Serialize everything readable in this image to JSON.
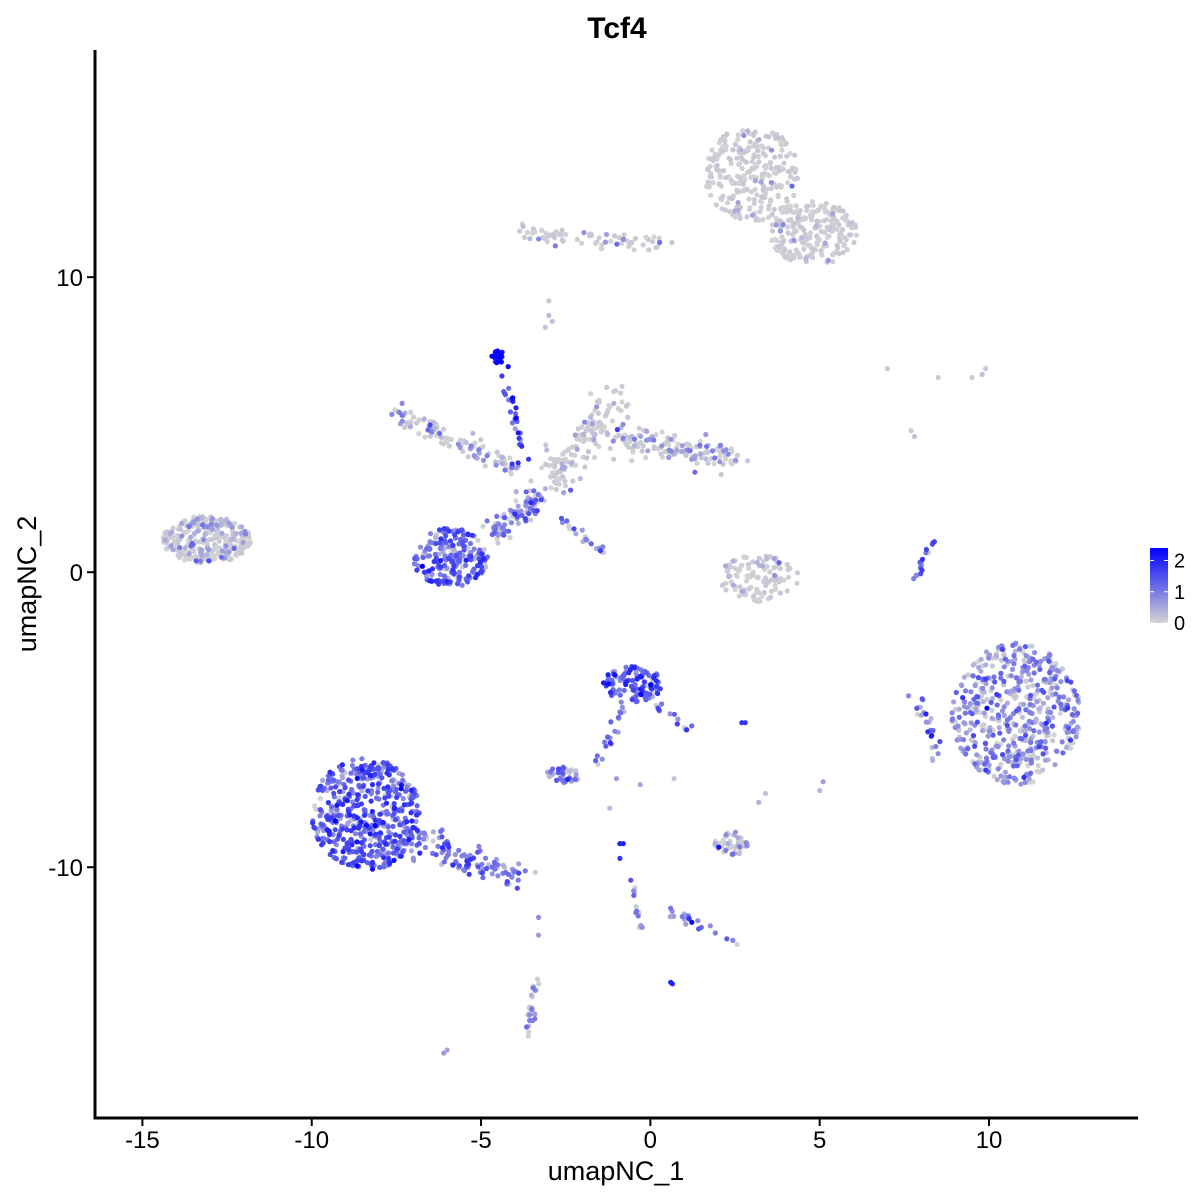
{
  "chart_data": {
    "type": "scatter",
    "title": "Tcf4",
    "xlabel": "umapNC_1",
    "ylabel": "umapNC_2",
    "xlim": [
      -16.4,
      14.4
    ],
    "ylim": [
      -18.5,
      17.7
    ],
    "x_ticks": [
      -15,
      -10,
      -5,
      0,
      5,
      10
    ],
    "x_tick_labels": [
      "-15",
      "-10",
      "-5",
      "0",
      "5",
      "10"
    ],
    "y_ticks": [
      -10,
      0,
      10
    ],
    "y_tick_labels": [
      "-10",
      "0",
      "10"
    ],
    "grid": false,
    "legend": {
      "placement": "right",
      "type": "colorbar",
      "range": [
        0,
        2.4
      ],
      "ticks": [
        0,
        1,
        2
      ],
      "tick_labels": [
        "0",
        "1",
        "2"
      ],
      "low_color": "#d3d3d3",
      "high_color": "#0000ff"
    },
    "points_note": "expression 0..2.4 mapped grey to blue",
    "clusters": [
      {
        "cx": 10.8,
        "cy": -4.8,
        "rx": 1.9,
        "ry": 2.4,
        "n": 520,
        "expr": 0.75,
        "shape": "blob"
      },
      {
        "cx": -8.4,
        "cy": -8.2,
        "rx": 1.6,
        "ry": 1.9,
        "n": 520,
        "expr": 1.25,
        "shape": "blob"
      },
      {
        "cx": 3.0,
        "cy": 13.5,
        "rx": 1.4,
        "ry": 1.6,
        "n": 260,
        "expr": 0.1,
        "shape": "blob"
      },
      {
        "cx": 4.8,
        "cy": 11.5,
        "rx": 1.3,
        "ry": 1.1,
        "n": 230,
        "expr": 0.15,
        "shape": "blob"
      },
      {
        "cx": -13.1,
        "cy": 1.1,
        "rx": 1.3,
        "ry": 0.8,
        "n": 280,
        "expr": 0.4,
        "shape": "blob"
      },
      {
        "cx": -5.9,
        "cy": 0.5,
        "rx": 1.1,
        "ry": 1.0,
        "n": 210,
        "expr": 1.2,
        "shape": "blob"
      },
      {
        "cx": -0.5,
        "cy": -3.8,
        "rx": 0.9,
        "ry": 0.6,
        "n": 110,
        "expr": 1.4,
        "shape": "blob"
      },
      {
        "cx": 3.2,
        "cy": -0.2,
        "rx": 1.2,
        "ry": 0.8,
        "n": 110,
        "expr": 0.25,
        "shape": "blob"
      },
      {
        "cx": 2.4,
        "cy": -9.2,
        "rx": 0.5,
        "ry": 0.4,
        "n": 45,
        "expr": 0.5,
        "shape": "blob"
      },
      {
        "cx": -2.6,
        "cy": -6.9,
        "rx": 0.5,
        "ry": 0.3,
        "n": 40,
        "expr": 1.0,
        "shape": "blob"
      },
      {
        "cx": -4.5,
        "cy": 7.3,
        "rx": 0.2,
        "ry": 0.2,
        "n": 18,
        "expr": 2.3,
        "shape": "blob"
      }
    ],
    "arms": [
      {
        "x0": -4.0,
        "y0": 3.5,
        "x1": -7.5,
        "y1": 5.4,
        "n": 110,
        "w": 0.35,
        "expr": 0.5
      },
      {
        "x0": -3.0,
        "y0": 3.0,
        "x1": -1.0,
        "y1": 5.8,
        "n": 140,
        "expr": 0.3,
        "w": 0.6
      },
      {
        "x0": -1.0,
        "y0": 4.5,
        "x1": 2.5,
        "y1": 3.9,
        "n": 140,
        "expr": 0.5,
        "w": 0.45
      },
      {
        "x0": -3.2,
        "y0": 2.6,
        "x1": -4.7,
        "y1": 1.3,
        "n": 90,
        "expr": 0.8,
        "w": 0.4
      },
      {
        "x0": -4.4,
        "y0": 7.1,
        "x1": -3.6,
        "y1": 3.2,
        "n": 28,
        "expr": 1.6,
        "w": 0.18
      },
      {
        "x0": -2.6,
        "y0": 1.8,
        "x1": -1.4,
        "y1": 0.7,
        "n": 22,
        "expr": 0.8,
        "w": 0.12
      },
      {
        "x0": -7.5,
        "y0": -8.9,
        "x1": -3.8,
        "y1": -10.3,
        "n": 120,
        "expr": 1.0,
        "w": 0.5
      },
      {
        "x0": -0.8,
        "y0": -4.5,
        "x1": -1.5,
        "y1": -6.5,
        "n": 22,
        "expr": 1.0,
        "w": 0.15
      },
      {
        "x0": 0.2,
        "y0": -4.5,
        "x1": 1.1,
        "y1": -5.4,
        "n": 14,
        "expr": 1.3,
        "w": 0.15
      },
      {
        "x0": -3.9,
        "y0": 11.5,
        "x1": 0.5,
        "y1": 11.1,
        "n": 70,
        "expr": 0.25,
        "w": 0.3
      },
      {
        "x0": -0.6,
        "y0": -10.3,
        "x1": -0.3,
        "y1": -12.1,
        "n": 14,
        "expr": 0.7,
        "w": 0.1
      },
      {
        "x0": 0.5,
        "y0": -11.5,
        "x1": 2.5,
        "y1": -12.5,
        "n": 20,
        "expr": 0.9,
        "w": 0.15
      },
      {
        "x0": -3.4,
        "y0": -13.8,
        "x1": -3.6,
        "y1": -15.6,
        "n": 28,
        "expr": 0.6,
        "w": 0.12
      },
      {
        "x0": 7.8,
        "y0": -0.2,
        "x1": 8.4,
        "y1": 1.1,
        "n": 16,
        "expr": 1.2,
        "w": 0.1
      },
      {
        "x0": 7.9,
        "y0": -4.3,
        "x1": 8.5,
        "y1": -6.3,
        "n": 25,
        "expr": 1.0,
        "w": 0.3
      },
      {
        "x0": 0.3,
        "y0": 0.0,
        "x1": 0.3,
        "y1": 0.0,
        "n": 0,
        "expr": 0,
        "w": 0
      }
    ],
    "singletons": [
      {
        "x": -3.3,
        "y": -11.7,
        "expr": 0.8
      },
      {
        "x": -3.3,
        "y": -12.3,
        "expr": 0.6
      },
      {
        "x": -0.9,
        "y": -9.2,
        "expr": 2.0
      },
      {
        "x": -0.8,
        "y": -9.2,
        "expr": 2.0
      },
      {
        "x": -0.9,
        "y": -9.7,
        "expr": 1.8
      },
      {
        "x": 0.6,
        "y": -13.9,
        "expr": 2.0
      },
      {
        "x": 0.65,
        "y": -13.95,
        "expr": 2.0
      },
      {
        "x": 2.8,
        "y": -5.1,
        "expr": 1.8
      },
      {
        "x": 2.7,
        "y": -5.1,
        "expr": 1.8
      },
      {
        "x": 5.1,
        "y": -7.1,
        "expr": 0.6
      },
      {
        "x": 5.0,
        "y": -7.4,
        "expr": 0.3
      },
      {
        "x": 3.4,
        "y": -7.5,
        "expr": 0.2
      },
      {
        "x": 3.2,
        "y": -7.8,
        "expr": 0.4
      },
      {
        "x": -1.0,
        "y": -7.0,
        "expr": 0.6
      },
      {
        "x": -0.3,
        "y": -7.2,
        "expr": 0.5
      },
      {
        "x": -1.2,
        "y": -8.0,
        "expr": 0.3
      },
      {
        "x": -6.1,
        "y": -16.3,
        "expr": 0.6
      },
      {
        "x": -6.0,
        "y": -16.2,
        "expr": 0.5
      },
      {
        "x": -3.0,
        "y": 8.7,
        "expr": 0.3
      },
      {
        "x": -3.1,
        "y": 8.3,
        "expr": 0.2
      },
      {
        "x": -3.0,
        "y": 9.2,
        "expr": 0.1
      },
      {
        "x": -2.9,
        "y": 8.5,
        "expr": 0.2
      },
      {
        "x": 7.0,
        "y": 6.9,
        "expr": 0.1
      },
      {
        "x": 8.5,
        "y": 6.6,
        "expr": 0.1
      },
      {
        "x": 9.5,
        "y": 6.6,
        "expr": 0.1
      },
      {
        "x": 9.9,
        "y": 6.9,
        "expr": 0.1
      },
      {
        "x": 9.8,
        "y": 6.7,
        "expr": 0.2
      },
      {
        "x": 7.7,
        "y": 4.8,
        "expr": 0.1
      },
      {
        "x": 7.8,
        "y": 4.6,
        "expr": 0.2
      },
      {
        "x": -2.2,
        "y": 1.3,
        "expr": 0.5
      },
      {
        "x": -1.6,
        "y": 0.8,
        "expr": 0.4
      },
      {
        "x": 0.7,
        "y": -7.0,
        "expr": 0.2
      }
    ]
  }
}
